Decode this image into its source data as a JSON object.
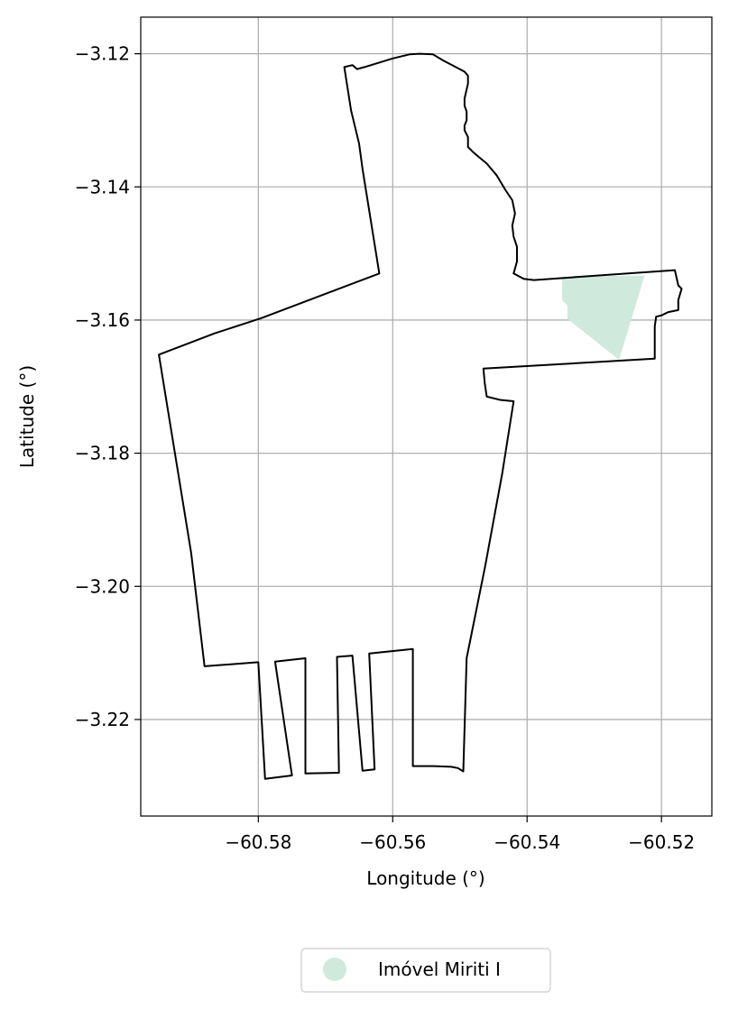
{
  "chart_data": {
    "type": "map",
    "xlabel": "Longitude (°)",
    "ylabel": "Latitude (°)",
    "xlim": [
      -60.5975,
      -60.5125
    ],
    "ylim": [
      -3.2345,
      -3.1145
    ],
    "x_ticks": [
      -60.58,
      -60.56,
      -60.54,
      -60.52
    ],
    "x_tick_labels": [
      "−60.58",
      "−60.56",
      "−60.54",
      "−60.52"
    ],
    "y_ticks": [
      -3.12,
      -3.14,
      -3.16,
      -3.18,
      -3.2,
      -3.22
    ],
    "y_tick_labels": [
      "−3.12",
      "−3.14",
      "−3.16",
      "−3.18",
      "−3.20",
      "−3.22"
    ],
    "grid": true,
    "boundary": [
      [
        -60.5672,
        -3.122
      ],
      [
        -60.566,
        -3.1217
      ],
      [
        -60.5653,
        -3.1223
      ],
      [
        -60.5642,
        -3.122
      ],
      [
        -60.56,
        -3.1207
      ],
      [
        -60.5575,
        -3.1201
      ],
      [
        -60.556,
        -3.12
      ],
      [
        -60.554,
        -3.1201
      ],
      [
        -60.5525,
        -3.121
      ],
      [
        -60.551,
        -3.1218
      ],
      [
        -60.5493,
        -3.1227
      ],
      [
        -60.5488,
        -3.1233
      ],
      [
        -60.5488,
        -3.1245
      ],
      [
        -60.5493,
        -3.1267
      ],
      [
        -60.5493,
        -3.1278
      ],
      [
        -60.549,
        -3.1287
      ],
      [
        -60.549,
        -3.13
      ],
      [
        -60.5493,
        -3.1308
      ],
      [
        -60.5493,
        -3.1315
      ],
      [
        -60.5488,
        -3.1325
      ],
      [
        -60.5488,
        -3.134
      ],
      [
        -60.548,
        -3.1348
      ],
      [
        -60.5472,
        -3.1355
      ],
      [
        -60.546,
        -3.1365
      ],
      [
        -60.5445,
        -3.1383
      ],
      [
        -60.5432,
        -3.1405
      ],
      [
        -60.5422,
        -3.142
      ],
      [
        -60.5418,
        -3.144
      ],
      [
        -60.5422,
        -3.1458
      ],
      [
        -60.542,
        -3.1475
      ],
      [
        -60.5415,
        -3.149
      ],
      [
        -60.5415,
        -3.1512
      ],
      [
        -60.542,
        -3.153
      ],
      [
        -60.5405,
        -3.1538
      ],
      [
        -60.539,
        -3.154
      ],
      [
        -60.518,
        -3.1525
      ],
      [
        -60.5175,
        -3.1548
      ],
      [
        -60.517,
        -3.1553
      ],
      [
        -60.5175,
        -3.157
      ],
      [
        -60.5175,
        -3.1585
      ],
      [
        -60.519,
        -3.1588
      ],
      [
        -60.52,
        -3.1593
      ],
      [
        -60.5208,
        -3.1595
      ],
      [
        -60.521,
        -3.161
      ],
      [
        -60.521,
        -3.164
      ],
      [
        -60.521,
        -3.1658
      ],
      [
        -60.5465,
        -3.1673
      ],
      [
        -60.5463,
        -3.1695
      ],
      [
        -60.546,
        -3.1715
      ],
      [
        -60.544,
        -3.172
      ],
      [
        -60.542,
        -3.1722
      ],
      [
        -60.5437,
        -3.183
      ],
      [
        -60.5462,
        -3.1968
      ],
      [
        -60.549,
        -3.2108
      ],
      [
        -60.5495,
        -3.2278
      ],
      [
        -60.5503,
        -3.2273
      ],
      [
        -60.5513,
        -3.2271
      ],
      [
        -60.554,
        -3.227
      ],
      [
        -60.557,
        -3.227
      ],
      [
        -60.557,
        -3.2094
      ],
      [
        -60.5635,
        -3.2101
      ],
      [
        -60.5627,
        -3.2275
      ],
      [
        -60.5645,
        -3.2277
      ],
      [
        -60.566,
        -3.2104
      ],
      [
        -60.5683,
        -3.2106
      ],
      [
        -60.568,
        -3.228
      ],
      [
        -60.573,
        -3.2281
      ],
      [
        -60.573,
        -3.2108
      ],
      [
        -60.5775,
        -3.2113
      ],
      [
        -60.575,
        -3.2284
      ],
      [
        -60.579,
        -3.2289
      ],
      [
        -60.58,
        -3.2114
      ],
      [
        -60.588,
        -3.212
      ],
      [
        -60.59,
        -3.195
      ],
      [
        -60.5948,
        -3.1652
      ],
      [
        -60.5865,
        -3.162
      ],
      [
        -60.5795,
        -3.1597
      ],
      [
        -60.562,
        -3.153
      ],
      [
        -60.5645,
        -3.1373
      ],
      [
        -60.565,
        -3.1335
      ],
      [
        -60.5662,
        -3.1285
      ]
    ],
    "series": [
      {
        "name": "Imóvel Miriti I",
        "color": "#cfeadd",
        "polygon": [
          [
            -60.5348,
            -3.1535
          ],
          [
            -60.5225,
            -3.1533
          ],
          [
            -60.5263,
            -3.166
          ],
          [
            -60.534,
            -3.1598
          ],
          [
            -60.534,
            -3.1578
          ],
          [
            -60.5348,
            -3.157
          ]
        ]
      }
    ],
    "legend_position": "bottom-center"
  }
}
